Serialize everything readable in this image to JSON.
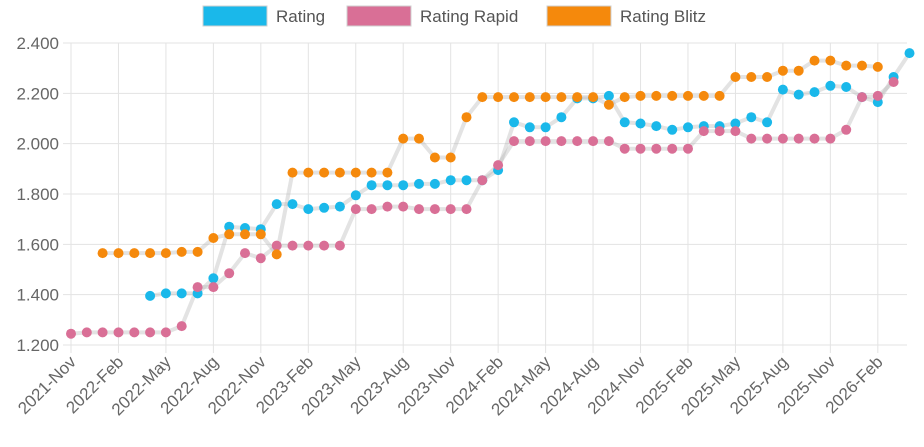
{
  "chart_data": {
    "type": "line",
    "title": "",
    "xlabel": "",
    "ylabel": "",
    "ylim": [
      1200,
      2400
    ],
    "yticks": [
      1200,
      1400,
      1600,
      1800,
      2000,
      2200,
      2400
    ],
    "ytick_labels": [
      "1.200",
      "1.400",
      "1.600",
      "1.800",
      "2.000",
      "2.200",
      "2.400"
    ],
    "x_start": "2021-11",
    "x_count": 54,
    "x_tick_every": 3,
    "x_tick_labels": [
      "2021-Nov",
      "2022-Feb",
      "2022-May",
      "2022-Aug",
      "2022-Nov",
      "2023-Feb",
      "2023-May",
      "2023-Aug",
      "2023-Nov",
      "2024-Feb",
      "2024-May",
      "2024-Aug",
      "2024-Nov",
      "2025-Feb",
      "2025-May",
      "2025-Aug",
      "2025-Nov",
      "2026-Feb"
    ],
    "grid": true,
    "legend_position": "top",
    "series": [
      {
        "name": "Rating",
        "color": "#1ab8ea",
        "values": [
          null,
          null,
          null,
          null,
          null,
          1395,
          1405,
          1405,
          1405,
          1465,
          1670,
          1665,
          1660,
          1760,
          1760,
          1740,
          1745,
          1750,
          1795,
          1835,
          1835,
          1835,
          1840,
          1840,
          1855,
          1855,
          1855,
          1895,
          2085,
          2065,
          2065,
          2105,
          2180,
          2180,
          2190,
          2085,
          2080,
          2070,
          2055,
          2065,
          2070,
          2070,
          2080,
          2105,
          2085,
          2215,
          2195,
          2205,
          2230,
          2225,
          2185,
          2165,
          2265,
          2360
        ]
      },
      {
        "name": "Rating Rapid",
        "color": "#d96f96",
        "values": [
          1245,
          1250,
          1250,
          1250,
          1250,
          1250,
          1250,
          1275,
          1430,
          1430,
          1485,
          1565,
          1545,
          1595,
          1595,
          1595,
          1595,
          1595,
          1740,
          1740,
          1750,
          1750,
          1740,
          1740,
          1740,
          1740,
          1855,
          1915,
          2010,
          2010,
          2010,
          2010,
          2010,
          2010,
          2010,
          1980,
          1980,
          1980,
          1980,
          1980,
          2050,
          2050,
          2050,
          2020,
          2020,
          2020,
          2020,
          2020,
          2020,
          2055,
          2185,
          2190,
          2245,
          null
        ]
      },
      {
        "name": "Rating Blitz",
        "color": "#f5890c",
        "values": [
          null,
          null,
          1565,
          1565,
          1565,
          1565,
          1565,
          1570,
          1570,
          1625,
          1640,
          1640,
          1640,
          1560,
          1885,
          1885,
          1885,
          1885,
          1885,
          1885,
          1885,
          2020,
          2020,
          1945,
          1945,
          2105,
          2185,
          2185,
          2185,
          2185,
          2185,
          2185,
          2185,
          2185,
          2155,
          2185,
          2190,
          2190,
          2190,
          2190,
          2190,
          2190,
          2265,
          2265,
          2265,
          2290,
          2290,
          2330,
          2330,
          2310,
          2310,
          2305,
          null,
          null
        ]
      }
    ]
  }
}
